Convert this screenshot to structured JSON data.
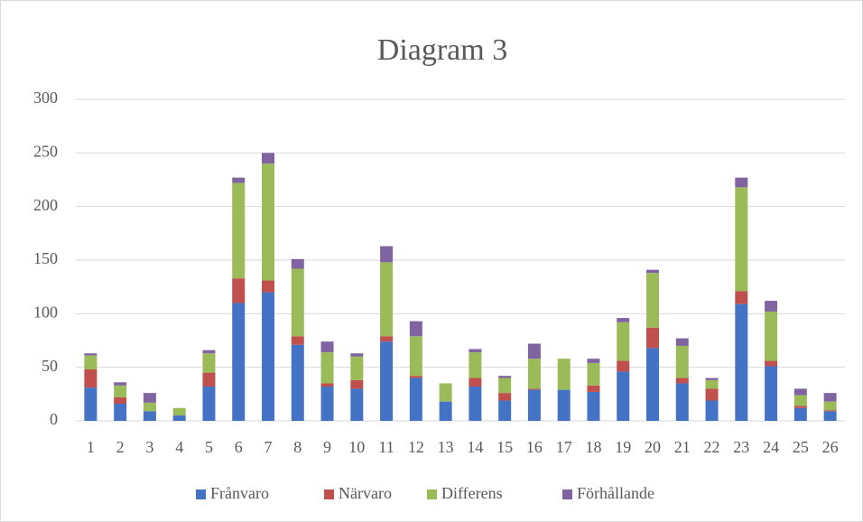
{
  "chart_data": {
    "type": "stacked_bar",
    "title": "Diagram 3",
    "categories": [
      "1",
      "2",
      "3",
      "4",
      "5",
      "6",
      "7",
      "8",
      "9",
      "10",
      "11",
      "12",
      "13",
      "14",
      "15",
      "16",
      "17",
      "18",
      "19",
      "20",
      "21",
      "22",
      "23",
      "24",
      "25",
      "26"
    ],
    "series": [
      {
        "name": "Frånvaro",
        "color": "#4472c4",
        "values": [
          31,
          16,
          9,
          5,
          32,
          110,
          120,
          71,
          32,
          30,
          74,
          40,
          18,
          32,
          19,
          29,
          29,
          27,
          46,
          68,
          35,
          19,
          109,
          51,
          12,
          9
        ]
      },
      {
        "name": "Närvaro",
        "color": "#c0504d",
        "values": [
          17,
          6,
          0,
          0,
          13,
          23,
          11,
          8,
          3,
          8,
          5,
          2,
          0,
          8,
          7,
          1,
          0,
          6,
          10,
          19,
          5,
          11,
          12,
          5,
          2,
          1
        ]
      },
      {
        "name": "Differens",
        "color": "#9bbb59",
        "values": [
          13,
          11,
          8,
          7,
          18,
          89,
          109,
          63,
          29,
          22,
          69,
          37,
          17,
          24,
          14,
          28,
          29,
          21,
          36,
          51,
          30,
          8,
          97,
          46,
          10,
          8
        ]
      },
      {
        "name": "Förhållande",
        "color": "#8064a2",
        "values": [
          2,
          3,
          9,
          0,
          3,
          5,
          10,
          9,
          10,
          3,
          15,
          14,
          0,
          3,
          2,
          14,
          0,
          4,
          4,
          3,
          7,
          2,
          9,
          10,
          6,
          8
        ]
      }
    ],
    "ylim": [
      0,
      300
    ],
    "yticks": [
      0,
      50,
      100,
      150,
      200,
      250,
      300
    ],
    "grid": true,
    "legend": "bottom"
  }
}
